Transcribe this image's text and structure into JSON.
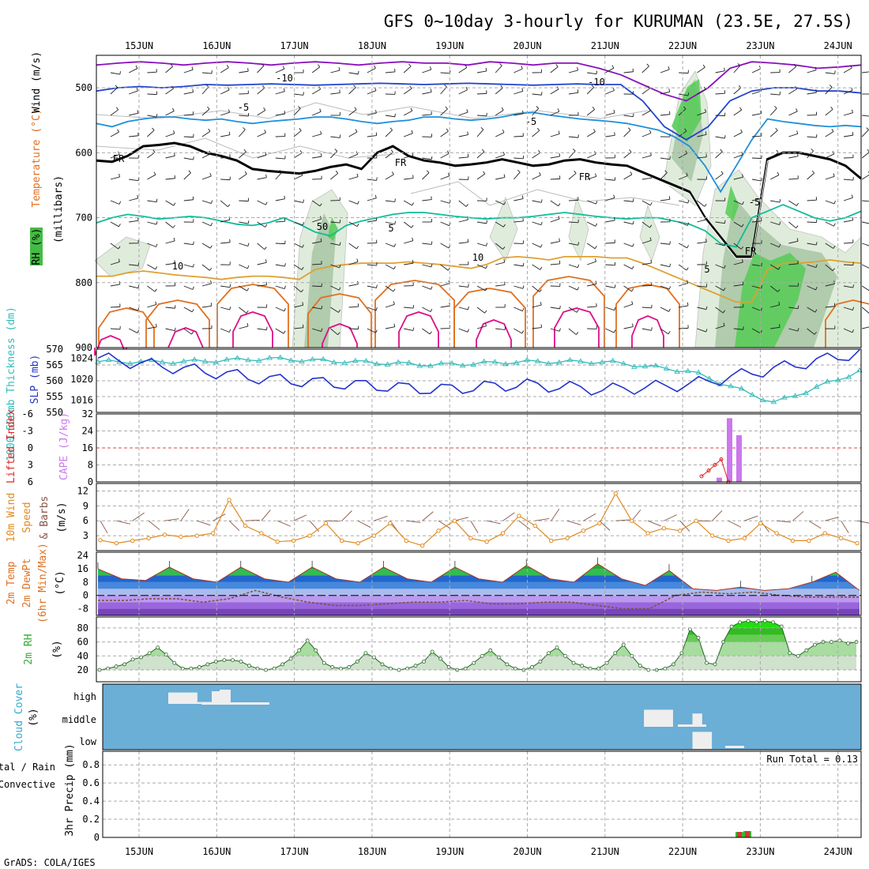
{
  "title": "GFS 0~10day 3-hourly for KURUMAN (23.5E, 27.5S)",
  "footer": "GrADS: COLA/IGES",
  "date_labels": [
    "15JUN",
    "16JUN",
    "17JUN",
    "18JUN",
    "19JUN",
    "20JUN",
    "21JUN",
    "22JUN",
    "23JUN",
    "24JUN"
  ],
  "colors": {
    "freezing": "#000000",
    "temp_minus10": "#2244cc",
    "temp_minus5": "#1e90dd",
    "temp_5": "#11bb99",
    "temp_10": "#e0a030",
    "temp_15": "#e07020",
    "temp_20": "#dd1188",
    "temp_purple": "#8811bb",
    "thickness": "#33bbbb",
    "slp": "#2233cc",
    "cape": "#cc77ee",
    "lifted_index": "#dd2222",
    "wind_speed": "#e08a20",
    "dewpoint": "#885544",
    "rh2m": "#44bb44",
    "cloud_bg": "#6baed6",
    "cloud_bar": "#eeeeee",
    "precip_conv": "#dd3333",
    "precip_total": "#33bb33"
  },
  "chart_data": [
    {
      "type": "heatmap",
      "panel": "Upper-air cross section",
      "ylabel": "(millibars)",
      "labels": [
        "RH (%)",
        "Temperature (°C)",
        "Wind (m/s)"
      ],
      "yticks": [
        500,
        600,
        700,
        800,
        900
      ],
      "ylim": [
        900,
        450
      ],
      "contour_labels": [
        "-10",
        "-5",
        "FR",
        "5",
        "10",
        "10",
        "50"
      ],
      "freezing_level_mb": [
        612,
        614,
        605,
        590,
        588,
        585,
        590,
        600,
        605,
        612,
        625,
        628,
        630,
        632,
        628,
        622,
        618,
        625,
        600,
        590,
        605,
        612,
        615,
        620,
        618,
        615,
        610,
        615,
        620,
        618,
        612,
        610,
        615,
        618,
        620,
        630,
        640,
        650,
        660,
        700,
        730,
        760,
        760,
        610,
        600,
        600,
        605,
        610,
        620,
        640
      ],
      "temp_minus5_mb": [
        555,
        560,
        552,
        548,
        545,
        545,
        548,
        550,
        548,
        552,
        555,
        552,
        550,
        548,
        545,
        545,
        548,
        552,
        555,
        552,
        550,
        545,
        545,
        548,
        550,
        548,
        545,
        540,
        538,
        542,
        545,
        548,
        550,
        552,
        555,
        560,
        565,
        575,
        590,
        620,
        660,
        620,
        580,
        548,
        552,
        555,
        558,
        560,
        558,
        560
      ],
      "temp_5_mb": [
        708,
        700,
        695,
        698,
        702,
        700,
        698,
        700,
        705,
        710,
        712,
        708,
        700,
        710,
        722,
        728,
        712,
        705,
        700,
        695,
        692,
        692,
        695,
        698,
        700,
        702,
        700,
        700,
        698,
        695,
        692,
        695,
        698,
        700,
        702,
        700,
        700,
        705,
        710,
        720,
        740,
        745,
        700,
        690,
        680,
        690,
        700,
        705,
        700,
        690
      ],
      "temp_10_mb": [
        790,
        790,
        785,
        782,
        785,
        788,
        790,
        792,
        795,
        792,
        790,
        790,
        792,
        795,
        780,
        775,
        772,
        770,
        770,
        770,
        768,
        770,
        772,
        775,
        778,
        772,
        762,
        760,
        762,
        765,
        760,
        760,
        760,
        762,
        762,
        770,
        780,
        790,
        800,
        810,
        820,
        830,
        830,
        780,
        770,
        770,
        768,
        765,
        768,
        770
      ],
      "rh_max_percent": 90
    },
    {
      "type": "line",
      "panel": "Thickness and sea level pressure",
      "x": [
        "15JUN",
        "16JUN",
        "17JUN",
        "18JUN",
        "19JUN",
        "20JUN",
        "21JUN",
        "22JUN",
        "23JUN",
        "24JUN"
      ],
      "series": [
        {
          "name": "1000-500mb Thickness (dm)",
          "values": [
            566,
            566,
            567,
            566,
            565,
            566,
            566,
            563,
            553,
            563
          ]
        },
        {
          "name": "SLP (mb)",
          "values": [
            1024,
            1022,
            1020,
            1019,
            1018,
            1019,
            1018,
            1019,
            1022,
            1025
          ]
        }
      ],
      "left_ticks": [
        550,
        555,
        560,
        565,
        570
      ],
      "right_ticks": [
        1016,
        1020,
        1024
      ]
    },
    {
      "type": "bar",
      "panel": "Lifted Index and CAPE",
      "ylabel_left": "Lifted Index",
      "ylabel_right": "CAPE (J/kg)",
      "left_ticks": [
        6,
        3,
        0,
        -3,
        -6
      ],
      "right_ticks": [
        0,
        8,
        16,
        24,
        32
      ],
      "cape_bars": [
        {
          "x": "22JUN 12Z",
          "value": 2
        },
        {
          "x": "22JUN 18Z",
          "value": 30
        },
        {
          "x": "23JUN 00Z",
          "value": 22
        }
      ],
      "lifted_index": [
        {
          "x": "22JUN 06Z",
          "value": 5
        },
        {
          "x": "22JUN 09Z",
          "value": 4
        },
        {
          "x": "22JUN 12Z",
          "value": 3
        },
        {
          "x": "22JUN 15Z",
          "value": 2
        },
        {
          "x": "22JUN 18Z",
          "value": 6
        }
      ]
    },
    {
      "type": "line",
      "panel": "10m Wind",
      "ylabel": "10m Wind Speed & Barbs (m/s)",
      "yticks": [
        3,
        6,
        9,
        12
      ],
      "series": [
        {
          "name": "10m Wind Speed",
          "values": [
            2.1,
            1.5,
            2.0,
            2.5,
            3.2,
            2.8,
            3.0,
            3.5,
            10.2,
            5.0,
            3.5,
            1.8,
            2.0,
            3.0,
            5.5,
            2.0,
            1.5,
            3.0,
            5.5,
            2.0,
            1.0,
            4.0,
            6.0,
            2.5,
            1.8,
            3.5,
            7.0,
            5.0,
            2.0,
            2.5,
            4.0,
            5.5,
            11.5,
            6.0,
            3.5,
            4.5,
            4.0,
            6.0,
            3.0,
            2.0,
            2.5,
            5.5,
            3.5,
            2.0,
            2.0,
            3.5,
            2.5,
            1.5
          ]
        }
      ]
    },
    {
      "type": "area",
      "panel": "2m Temp / DewPt",
      "ylabel": "2m Temp 2m DewPt (6hr Min/Max) (°C)",
      "yticks": [
        -8,
        0,
        8,
        16,
        24
      ],
      "series": [
        {
          "name": "2m Temp",
          "values": [
            16,
            10,
            9,
            17,
            10,
            8,
            17,
            10,
            8,
            17,
            10,
            8,
            17,
            10,
            8,
            17,
            10,
            8,
            18,
            10,
            8,
            19,
            10,
            6,
            15,
            4,
            3,
            5,
            3,
            4,
            8,
            14,
            3
          ]
        },
        {
          "name": "2m DewPt",
          "values": [
            -3,
            -3,
            -2,
            -2,
            -4,
            -2,
            3,
            -1,
            -4,
            -6,
            -6,
            -5,
            -4,
            -4,
            -3,
            -5,
            -5,
            -4,
            -4,
            -6,
            -8,
            -8,
            0,
            2,
            1,
            2,
            0,
            -1,
            -1,
            -1
          ]
        }
      ]
    },
    {
      "type": "area",
      "panel": "2m RH",
      "ylabel": "2m RH (%)",
      "yticks": [
        20,
        40,
        60,
        80
      ],
      "series": [
        {
          "name": "2m RH",
          "values": [
            20,
            22,
            25,
            28,
            35,
            38,
            44,
            52,
            42,
            30,
            22,
            22,
            24,
            28,
            32,
            34,
            34,
            32,
            26,
            22,
            20,
            22,
            28,
            36,
            48,
            62,
            48,
            30,
            24,
            22,
            24,
            32,
            44,
            38,
            28,
            22,
            20,
            22,
            26,
            32,
            46,
            36,
            24,
            20,
            22,
            30,
            40,
            48,
            38,
            28,
            22,
            20,
            24,
            32,
            44,
            52,
            40,
            30,
            26,
            22,
            22,
            30,
            44,
            56,
            40,
            26,
            20,
            20,
            22,
            28,
            44,
            78,
            66,
            30,
            28,
            60,
            82,
            88,
            90,
            88,
            90,
            88,
            82,
            44,
            40,
            48,
            56,
            60,
            60,
            62,
            58,
            60
          ]
        }
      ]
    },
    {
      "type": "bar",
      "panel": "Cloud Cover",
      "ylabel": "Cloud Cover (%)",
      "levels": [
        "high",
        "middle",
        "low"
      ],
      "blocks": [
        {
          "level": "high",
          "from": "15JUN 21Z",
          "to": "16JUN 06Z",
          "value": 60
        },
        {
          "level": "high",
          "from": "16JUN 06Z",
          "to": "16JUN 15Z",
          "value": 10
        },
        {
          "level": "middle",
          "from": "22JUN 00Z",
          "to": "22JUN 09Z",
          "value": 90
        },
        {
          "level": "middle",
          "from": "22JUN 15Z",
          "to": "22JUN 18Z",
          "value": 70
        },
        {
          "level": "low",
          "from": "22JUN 15Z",
          "to": "22JUN 21Z",
          "value": 90
        }
      ]
    },
    {
      "type": "bar",
      "panel": "3hr Precip",
      "ylabel": "3hr Precip (mm)",
      "legend": [
        "Total / Rain",
        "Convective"
      ],
      "run_total_label": "Run Total = 0.13",
      "yticks": [
        0,
        0.2,
        0.4,
        0.6,
        0.8
      ],
      "bars": [
        {
          "x": "22JUN 18Z",
          "total": 0.06,
          "convective": 0.06
        },
        {
          "x": "22JUN 21Z",
          "total": 0.07,
          "convective": 0.07
        }
      ]
    }
  ],
  "panel_labels": {
    "upper": {
      "rh": "RH (%)",
      "temperature": "Temperature (°C)",
      "wind": "Wind (m/s)",
      "millibars": "(millibars)"
    },
    "slp": {
      "thickness": "1000-500mb Thickness (dm)",
      "slp": "SLP (mb)"
    },
    "li": {
      "li": "Lifted Index",
      "cape": "CAPE (J/kg)"
    },
    "wind10": {
      "line1": "10m Wind",
      "line2": "Speed",
      "line3": "(m/s)",
      "barbs": "& Barbs"
    },
    "temp2m": {
      "line1": "2m Temp",
      "line2": "2m DewPt",
      "line3": "(6hr Min/Max)",
      "units": "(°C)"
    },
    "rh2m": {
      "line1": "2m RH",
      "units": "(%)"
    },
    "cloud": {
      "line1": "Cloud Cover",
      "units": "(%)",
      "high": "high",
      "middle": "middle",
      "low": "low"
    },
    "precip": {
      "total": "Total / Rain",
      "convective": "Convective",
      "axis": "3hr Precip (mm)"
    }
  }
}
